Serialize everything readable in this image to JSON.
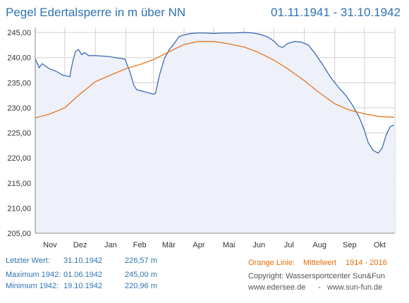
{
  "header": {
    "title": "Pegel Edertalsperre in m über NN",
    "date_range": "01.11.1941 - 31.10.1942"
  },
  "colors": {
    "title": "#2e74b5",
    "level_line": "#2f5fa8",
    "area_fill": "#eef0fa",
    "mean_line": "#e46c0a",
    "grid": "#d0d0d0",
    "axis": "#888888"
  },
  "chart_data": {
    "type": "line",
    "title": "",
    "xlabel": "",
    "ylabel": "",
    "x_ticks": [
      "Nov",
      "Dez",
      "Jan",
      "Feb",
      "Mär",
      "Apr",
      "Mai",
      "Jun",
      "Jul",
      "Aug",
      "Sep",
      "Okt"
    ],
    "y_ticks": [
      "205,00",
      "210,00",
      "215,00",
      "220,00",
      "225,00",
      "230,00",
      "235,00",
      "240,00",
      "245,00"
    ],
    "ylim": [
      205,
      246
    ],
    "grid": true,
    "legend": "none",
    "series": [
      {
        "x": [
          "1941-11-01",
          "1941-11-05",
          "1941-11-08",
          "1941-11-15",
          "1941-11-22",
          "1941-11-29",
          "1941-12-06",
          "1941-12-09",
          "1941-12-12",
          "1941-12-15",
          "1941-12-18",
          "1941-12-21",
          "1941-12-25",
          "1942-01-01",
          "1942-01-15",
          "1942-01-31",
          "1942-02-05",
          "1942-02-09",
          "1942-02-12",
          "1942-02-20",
          "1942-03-01",
          "1942-03-03",
          "1942-03-07",
          "1942-03-12",
          "1942-03-17",
          "1942-03-22",
          "1942-03-27",
          "1942-04-01",
          "1942-04-08",
          "1942-04-15",
          "1942-04-22",
          "1942-05-01",
          "1942-05-10",
          "1942-05-20",
          "1942-06-01",
          "1942-06-10",
          "1942-06-18",
          "1942-06-25",
          "1942-07-01",
          "1942-07-06",
          "1942-07-10",
          "1942-07-15",
          "1942-07-22",
          "1942-07-29",
          "1942-08-05",
          "1942-08-12",
          "1942-08-20",
          "1942-08-28",
          "1942-09-05",
          "1942-09-12",
          "1942-09-19",
          "1942-09-26",
          "1942-10-01",
          "1942-10-05",
          "1942-10-10",
          "1942-10-15",
          "1942-10-19",
          "1942-10-23",
          "1942-10-27",
          "1942-10-31"
        ],
        "values": [
          239.8,
          238.0,
          238.8,
          237.8,
          237.3,
          236.5,
          236.2,
          239.2,
          241.3,
          241.6,
          240.6,
          241.0,
          240.4,
          240.4,
          240.2,
          239.7,
          237.2,
          234.5,
          233.6,
          233.2,
          232.7,
          232.9,
          236.5,
          239.8,
          241.6,
          242.8,
          244.2,
          244.5,
          244.8,
          244.9,
          244.9,
          244.8,
          244.9,
          244.9,
          245.0,
          244.9,
          244.6,
          244.1,
          243.3,
          242.3,
          242.0,
          242.8,
          243.2,
          243.1,
          242.5,
          240.8,
          238.5,
          236.0,
          234.0,
          232.5,
          230.5,
          228.0,
          225.5,
          223.0,
          221.5,
          220.96,
          222.0,
          224.5,
          226.2,
          226.57
        ],
        "name": ""
      },
      {
        "x": [
          "1941-11-01",
          "1941-11-15",
          "1941-12-01",
          "1941-12-15",
          "1942-01-01",
          "1942-01-15",
          "1942-02-01",
          "1942-02-15",
          "1942-03-01",
          "1942-03-15",
          "1942-04-01",
          "1942-04-15",
          "1942-05-01",
          "1942-05-15",
          "1942-06-01",
          "1942-06-15",
          "1942-07-01",
          "1942-07-15",
          "1942-08-01",
          "1942-08-15",
          "1942-09-01",
          "1942-09-15",
          "1942-10-01",
          "1942-10-15",
          "1942-10-31"
        ],
        "values": [
          228.0,
          228.7,
          230.0,
          232.5,
          235.2,
          236.4,
          237.8,
          238.6,
          239.6,
          241.0,
          242.6,
          243.2,
          243.2,
          242.8,
          242.1,
          241.1,
          239.5,
          237.8,
          235.4,
          233.2,
          230.8,
          229.6,
          228.8,
          228.3,
          228.1
        ],
        "name": "Mittelwert 1914 - 2016"
      }
    ]
  },
  "info": {
    "last_label": "Letzter Wert:",
    "last_date": "31.10.1942",
    "last_value": "226,57 m",
    "max_label": "Maximum 1942:",
    "max_date": "01.06.1942",
    "max_value": "245,00 m",
    "min_label": "Minimum  1942:",
    "min_date": "19.10.1942",
    "min_value": "220,96 m",
    "legend_label": "Orange Linie:",
    "legend_text": "Mittelwert",
    "legend_years": "1914 - 2016",
    "copyright": "Copyright: Wassersportcenter Sun&Fun",
    "website1": "www.edersee.de",
    "website_sep": "-",
    "website2": "www.sun-fun.de"
  }
}
